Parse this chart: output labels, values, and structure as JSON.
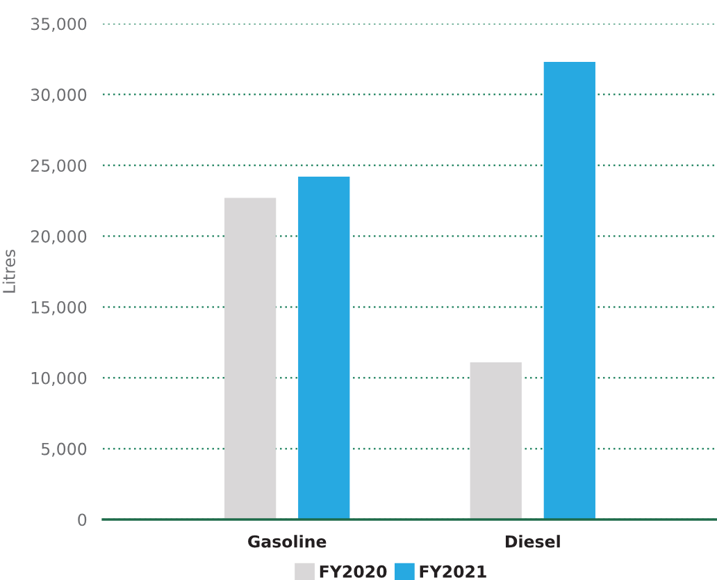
{
  "chart_data": {
    "type": "bar",
    "ylabel": "Litres",
    "categories": [
      "Gasoline",
      "Diesel"
    ],
    "series": [
      {
        "name": "FY2020",
        "color": "#d9d7d8",
        "values": [
          22700,
          11100
        ]
      },
      {
        "name": "FY2021",
        "color": "#27a9e1",
        "values": [
          24200,
          32300
        ]
      }
    ],
    "ylim": [
      0,
      35000
    ],
    "yticks": [
      {
        "value": 0,
        "label": "0"
      },
      {
        "value": 5000,
        "label": "5,000"
      },
      {
        "value": 10000,
        "label": "10,000"
      },
      {
        "value": 15000,
        "label": "15,000"
      },
      {
        "value": 20000,
        "label": "20,000"
      },
      {
        "value": 25000,
        "label": "25,000"
      },
      {
        "value": 30000,
        "label": "30,000"
      },
      {
        "value": 35000,
        "label": "35,000"
      }
    ],
    "grid": "y",
    "legend": "bottom"
  }
}
